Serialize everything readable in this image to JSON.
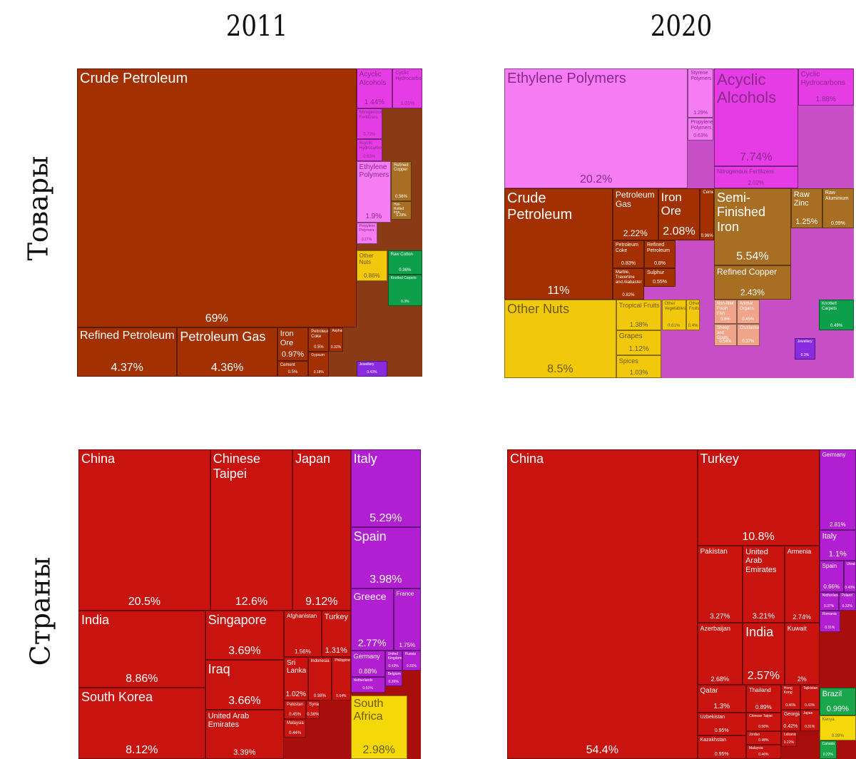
{
  "columns": [
    "2011",
    "2020"
  ],
  "rows": [
    "Товары",
    "Страны"
  ],
  "colors": {
    "mineral": "#a33000",
    "chemical": "#e63ce6",
    "plastic": "#f57cf3",
    "metal": "#a86e24",
    "vegetable": "#f2c80c",
    "textile": "#0e9f4a",
    "asia": "#c8130e",
    "europe": "#b21fd3",
    "africa": "#f5d80a",
    "americas": "#1aa64a"
  },
  "chart_data": [
    {
      "type": "treemap",
      "title": "2011",
      "row": "Товары",
      "items": [
        {
          "label": "Crude Petroleum",
          "value": 69,
          "group": "mineral"
        },
        {
          "label": "Refined Petroleum",
          "value": 4.37,
          "group": "mineral"
        },
        {
          "label": "Petroleum Gas",
          "value": 4.36,
          "group": "mineral"
        },
        {
          "label": "Iron Ore",
          "value": 0.97,
          "group": "mineral"
        },
        {
          "label": "Petroleum Coke",
          "value": 0.5,
          "group": "mineral"
        },
        {
          "label": "Cement",
          "value": 0.5,
          "group": "mineral"
        },
        {
          "label": "Asphalt",
          "value": 0.32,
          "group": "mineral"
        },
        {
          "label": "Gypsum",
          "value": 0.18,
          "group": "mineral"
        },
        {
          "label": "Acyclic Alcohols",
          "value": 1.44,
          "group": "chemical"
        },
        {
          "label": "Cyclic Hydrocarbons",
          "value": 1.01,
          "group": "chemical"
        },
        {
          "label": "Nitrogenous Fertilizers",
          "value": 0.72,
          "group": "chemical"
        },
        {
          "label": "Acyclic Hydrocarbons",
          "value": 0.63,
          "group": "chemical"
        },
        {
          "label": "Ethylene Polymers",
          "value": 1.9,
          "group": "plastic"
        },
        {
          "label": "Propylene Polymers",
          "value": 0.27,
          "group": "plastic"
        },
        {
          "label": "Refined Copper",
          "value": 0.56,
          "group": "metal"
        },
        {
          "label": "Hot-Rolled Iron",
          "value": 0.28,
          "group": "metal"
        },
        {
          "label": "Other Nuts",
          "value": 0.86,
          "group": "vegetable"
        },
        {
          "label": "Raw Cotton",
          "value": 0.36,
          "group": "textile"
        },
        {
          "label": "Knotted Carpets",
          "value": 0.3,
          "group": "textile"
        },
        {
          "label": "Jewellery",
          "value": 0.43,
          "group": "other"
        }
      ]
    },
    {
      "type": "treemap",
      "title": "2020",
      "row": "Товары",
      "items": [
        {
          "label": "Ethylene Polymers",
          "value": 20.2,
          "group": "plastic"
        },
        {
          "label": "Styrene Polymers",
          "value": 1.29,
          "group": "plastic"
        },
        {
          "label": "Propylene Polymers",
          "value": 0.63,
          "group": "plastic"
        },
        {
          "label": "Acyclic Alcohols",
          "value": 7.74,
          "group": "chemical"
        },
        {
          "label": "Nitrogenous Fertilizers",
          "value": 2.02,
          "group": "chemical"
        },
        {
          "label": "Cyclic Hydrocarbons",
          "value": 1.88,
          "group": "chemical"
        },
        {
          "label": "Crude Petroleum",
          "value": 11,
          "group": "mineral"
        },
        {
          "label": "Petroleum Gas",
          "value": 2.22,
          "group": "mineral"
        },
        {
          "label": "Iron Ore",
          "value": 2.08,
          "group": "mineral"
        },
        {
          "label": "Cement",
          "value": 0.96,
          "group": "mineral"
        },
        {
          "label": "Petroleum Coke",
          "value": 0.83,
          "group": "mineral"
        },
        {
          "label": "Refined Petroleum",
          "value": 0.8,
          "group": "mineral"
        },
        {
          "label": "Marble, Travertine and Alabaster",
          "value": 0.82,
          "group": "mineral"
        },
        {
          "label": "Sulphur",
          "value": 0.55,
          "group": "mineral"
        },
        {
          "label": "Semi-Finished Iron",
          "value": 5.54,
          "group": "metal"
        },
        {
          "label": "Refined Copper",
          "value": 2.43,
          "group": "metal"
        },
        {
          "label": "Raw Zinc",
          "value": 1.25,
          "group": "metal"
        },
        {
          "label": "Raw Aluminium",
          "value": 0.99,
          "group": "metal"
        },
        {
          "label": "Other Nuts",
          "value": 8.5,
          "group": "vegetable"
        },
        {
          "label": "Tropical Fruits",
          "value": 1.38,
          "group": "vegetable"
        },
        {
          "label": "Grapes",
          "value": 1.12,
          "group": "vegetable"
        },
        {
          "label": "Spices",
          "value": 1.03,
          "group": "vegetable"
        },
        {
          "label": "Other Vegetables",
          "value": 0.61,
          "group": "vegetable"
        },
        {
          "label": "Other Fruits",
          "value": 0.4,
          "group": "vegetable"
        },
        {
          "label": "Non-fillet Fresh Fish",
          "value": 0.6,
          "group": "animal"
        },
        {
          "label": "Animal Organs",
          "value": 0.45,
          "group": "animal"
        },
        {
          "label": "Sheep and Goats",
          "value": 0.54,
          "group": "animal"
        },
        {
          "label": "Crustaceans",
          "value": 0.37,
          "group": "animal"
        },
        {
          "label": "Knotted Carpets",
          "value": 0.49,
          "group": "textile"
        },
        {
          "label": "Jewellery",
          "value": 0.3,
          "group": "other"
        }
      ]
    },
    {
      "type": "treemap",
      "title": "2011",
      "row": "Страны",
      "items": [
        {
          "label": "China",
          "value": 20.5,
          "group": "asia"
        },
        {
          "label": "Chinese Taipei",
          "value": 12.6,
          "group": "asia"
        },
        {
          "label": "Japan",
          "value": 9.12,
          "group": "asia"
        },
        {
          "label": "India",
          "value": 8.86,
          "group": "asia"
        },
        {
          "label": "South Korea",
          "value": 8.12,
          "group": "asia"
        },
        {
          "label": "Singapore",
          "value": 3.69,
          "group": "asia"
        },
        {
          "label": "Iraq",
          "value": 3.66,
          "group": "asia"
        },
        {
          "label": "United Arab Emirates",
          "value": 3.39,
          "group": "asia"
        },
        {
          "label": "Afghanistan",
          "value": 1.56,
          "group": "asia"
        },
        {
          "label": "Turkey",
          "value": 1.31,
          "group": "asia"
        },
        {
          "label": "Sri Lanka",
          "value": 1.02,
          "group": "asia"
        },
        {
          "label": "Indonesia",
          "value": 0.98,
          "group": "asia"
        },
        {
          "label": "Philippines",
          "value": 0.64,
          "group": "asia"
        },
        {
          "label": "Pakistan",
          "value": 0.45,
          "group": "asia"
        },
        {
          "label": "Malaysia",
          "value": 0.44,
          "group": "asia"
        },
        {
          "label": "Syria",
          "value": 0.36,
          "group": "asia"
        },
        {
          "label": "Italy",
          "value": 5.29,
          "group": "europe"
        },
        {
          "label": "Spain",
          "value": 3.98,
          "group": "europe"
        },
        {
          "label": "Greece",
          "value": 2.77,
          "group": "europe"
        },
        {
          "label": "France",
          "value": 1.75,
          "group": "europe"
        },
        {
          "label": "Germany",
          "value": 0.88,
          "group": "europe"
        },
        {
          "label": "Netherlands",
          "value": 0.51,
          "group": "europe"
        },
        {
          "label": "United Kingdom",
          "value": 0.43,
          "group": "europe"
        },
        {
          "label": "Russia",
          "value": 0.31,
          "group": "europe"
        },
        {
          "label": "Belgium",
          "value": 0.26,
          "group": "europe"
        },
        {
          "label": "South Africa",
          "value": 2.98,
          "group": "africa"
        }
      ]
    },
    {
      "type": "treemap",
      "title": "2020",
      "row": "Страны",
      "items": [
        {
          "label": "China",
          "value": 54.4,
          "group": "asia"
        },
        {
          "label": "Turkey",
          "value": 10.8,
          "group": "asia"
        },
        {
          "label": "Pakistan",
          "value": 3.27,
          "group": "asia"
        },
        {
          "label": "United Arab Emirates",
          "value": 3.21,
          "group": "asia"
        },
        {
          "label": "Armenia",
          "value": 2.74,
          "group": "asia"
        },
        {
          "label": "Azerbaijan",
          "value": 2.68,
          "group": "asia"
        },
        {
          "label": "India",
          "value": 2.57,
          "group": "asia"
        },
        {
          "label": "Kuwait",
          "value": 2,
          "group": "asia"
        },
        {
          "label": "Qatar",
          "value": 1.3,
          "group": "asia"
        },
        {
          "label": "Uzbekistan",
          "value": 0.95,
          "group": "asia"
        },
        {
          "label": "Kazakhstan",
          "value": 0.95,
          "group": "asia"
        },
        {
          "label": "Thailand",
          "value": 0.89,
          "group": "asia"
        },
        {
          "label": "Chinese Taipei",
          "value": 0.56,
          "group": "asia"
        },
        {
          "label": "Jordan",
          "value": 0.48,
          "group": "asia"
        },
        {
          "label": "Malaysia",
          "value": 0.46,
          "group": "asia"
        },
        {
          "label": "Hong Kong",
          "value": 0.46,
          "group": "asia"
        },
        {
          "label": "Tajikistan",
          "value": 0.43,
          "group": "asia"
        },
        {
          "label": "Georgia",
          "value": 0.42,
          "group": "asia"
        },
        {
          "label": "Japan",
          "value": 0.31,
          "group": "asia"
        },
        {
          "label": "Lebanon",
          "value": 0.22,
          "group": "asia"
        },
        {
          "label": "Germany",
          "value": 2.81,
          "group": "europe"
        },
        {
          "label": "Italy",
          "value": 1.1,
          "group": "europe"
        },
        {
          "label": "Spain",
          "value": 0.66,
          "group": "europe"
        },
        {
          "label": "Ukraine",
          "value": 0.43,
          "group": "europe"
        },
        {
          "label": "Netherlands",
          "value": 0.37,
          "group": "europe"
        },
        {
          "label": "Poland",
          "value": 0.32,
          "group": "europe"
        },
        {
          "label": "Romania",
          "value": 0.31,
          "group": "europe"
        },
        {
          "label": "Brazil",
          "value": 0.99,
          "group": "americas"
        },
        {
          "label": "Kenya",
          "value": 0.39,
          "group": "africa"
        },
        {
          "label": "Canada",
          "value": 0.22,
          "group": "americas"
        }
      ]
    }
  ]
}
